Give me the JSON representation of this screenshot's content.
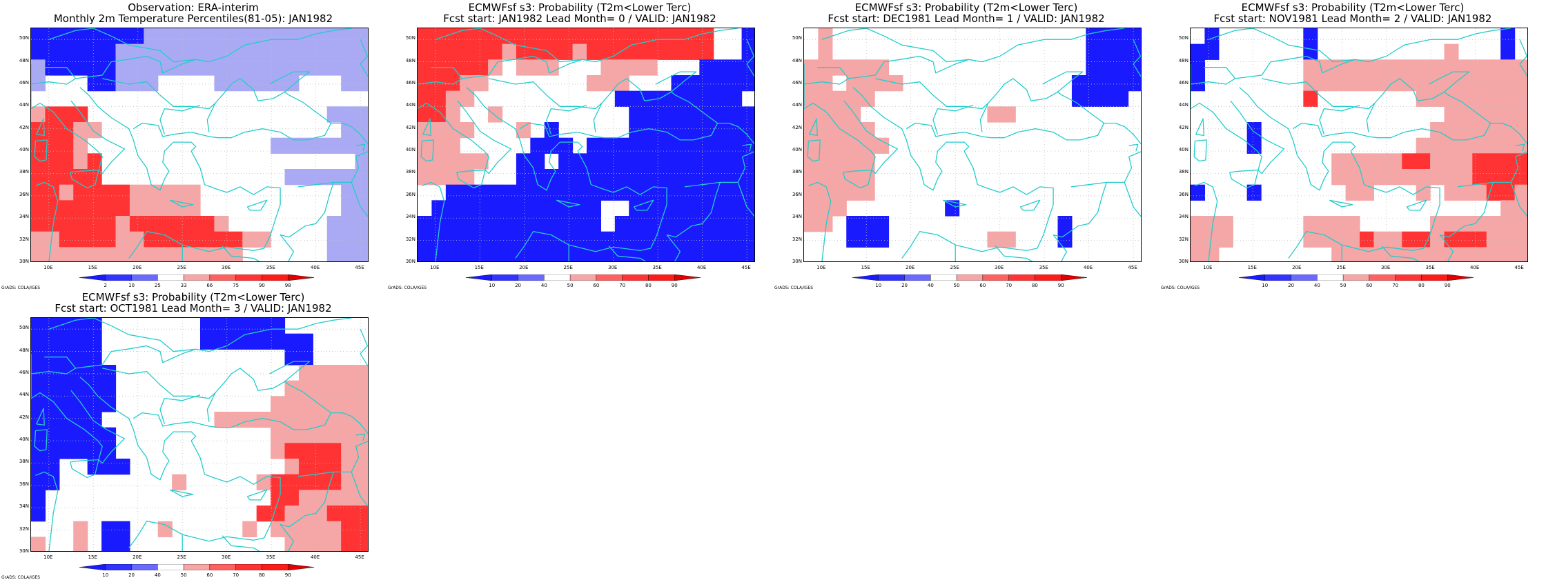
{
  "colors": {
    "blue": [
      "#1a1aff",
      "#3333ff",
      "#6a6aff",
      "#aaaaf4"
    ],
    "red": [
      "#ff1a1a",
      "#ff3333",
      "#ff6060",
      "#f5a6a6"
    ],
    "coast": "#22cccc",
    "grid": "#bfbfbf",
    "white": "#ffffff"
  },
  "map": {
    "lat_labels": [
      "50N",
      "48N",
      "46N",
      "44N",
      "42N",
      "40N",
      "38N",
      "36N",
      "34N",
      "32N",
      "30N"
    ],
    "lon_labels": [
      "10E",
      "15E",
      "20E",
      "25E",
      "30E",
      "35E",
      "40E",
      "45E"
    ],
    "lon_range": [
      8,
      46
    ],
    "lat_range": [
      30,
      51
    ]
  },
  "panels": [
    {
      "title_line1": "Observation: ERA-interim",
      "title_line2": "Monthly 2m Temperature Percentiles(81-05): JAN1982",
      "colorbar_labels": [
        "2",
        "10",
        "25",
        "33",
        "66",
        "75",
        "90",
        "98"
      ],
      "credit": "GrADS: COLA/IGES",
      "grid": [
        "BBBBBBBBbbbbbbbbbbbbbbbb",
        "BBBBBBbbbbbbbbbbbbbbbbbb",
        "bBBBBBbbbbbbbbbbbbbbbbbb",
        "b...BBbbb....bbbbbb...bb",
        "........................",
        "rRRR.................bbb",
        "RRRrr.................bb",
        "RRRr.............bbbbbbb",
        "RRRrR..................b",
        "RRRRR.............bbbbbb",
        "RRrRRRRrrrrr..........bb",
        "RRRRRRRrrrrr..........bb",
        "RRRRRRrRRRRRRr.......bbb",
        "rrRRRRrrRRRRRRRrr....bbb",
        "rrrrrrrrrrrrrrr......bbb"
      ]
    },
    {
      "title_line1": "ECMWFsf s3: Probability (T2m<Lower Terc)",
      "title_line2": "Fcst start: JAN1982  Lead Month= 0 / VALID: JAN1982",
      "colorbar_labels": [
        "10",
        "20",
        "40",
        "50",
        "60",
        "70",
        "80",
        "90"
      ],
      "credit": "GrADS: COLA/IGES",
      "grid": [
        "RRRRRRRRRRRRRRRRRRRRR..B",
        "RRRRRRrRRRRrRRRRRRRRR..B",
        "RRRRRr.rrr...rrrr...BBBB",
        "RRRrr.......rrr...BBBBBB",
        "RRrr..........BBBBBBBBB.",
        "RRr..r.........BBBBBBBBB",
        "rrrr...r.B.....BBBBBBBBB",
        "rrr.....BBB.BBBBBBBBBBBB",
        "rrrrr..BB.BBBBBBBBBBBBBB",
        "rrrr...BBBBBBBBBBBBBBBBB",
        "..BBBBBBBBBBBBBBBBBBBBBB",
        ".BBBBBBBBBBBB..BBBBBBBBB",
        "BBBBBBBBBBBBB.BBBBBBBBBB",
        "BBBBBBBBBBBBBBBBBBBBBBBB",
        "BBBBBBBBBBBBBBBBBBBBBBBB"
      ]
    },
    {
      "title_line1": "ECMWFsf s3: Probability (T2m<Lower Terc)",
      "title_line2": "Fcst start: DEC1981  Lead Month= 1 / VALID: JAN1982",
      "colorbar_labels": [
        "10",
        "20",
        "40",
        "50",
        "60",
        "70",
        "80",
        "90"
      ],
      "credit": "GrADS: COLA/IGES",
      "grid": [
        ".r..................BBBB",
        ".r..................BBBB",
        "rrrrrr..............BBBB",
        "rr.rrrr............BBBBB",
        "rrrrr..............BBBB.",
        "rrrr.........rr.........",
        "rrrrr...................",
        "rrrrrr..................",
        "rrrrr...................",
        "rrrrr...................",
        "rrrrr...................",
        "rrr.......B.............",
        "rr.BBB............B.....",
        "...BBB.......rr...B.....",
        "........................"
      ]
    },
    {
      "title_line1": "ECMWFsf s3: Probability (T2m<Lower Terc)",
      "title_line2": "Fcst start: NOV1981  Lead Month= 2 / VALID: JAN1982",
      "colorbar_labels": [
        "10",
        "20",
        "40",
        "50",
        "60",
        "70",
        "80",
        "90"
      ],
      "credit": "GrADS: COLA/IGES",
      "grid": [
        ".B......B.............B.",
        "BB......B.........r...B.",
        "B.......rrrrrrrrrrrrrrrr",
        "B.......rrrrrrrrrrrrrrrr",
        "........R.......rrrrrrrr",
        "..................rrrrrr",
        "....B............rrrrrrr",
        "....B...........rrrrrrrr",
        "..........rrrrrRRrrrRRRR",
        "..........rrrrrrrrrrRRRR",
        "B...B......rr...r.rrrRRr",
        "......................rr",
        "rrr.....rrrr.....rrrrrrr",
        "rrr.....rrrrRrrRRrRRRrrr",
        "rr........rrrrrrrrrrrrrr"
      ]
    },
    {
      "title_line1": "ECMWFsf s3: Probability (T2m<Lower Terc)",
      "title_line2": "Fcst start: OCT1981  Lead Month= 3 / VALID: JAN1982",
      "colorbar_labels": [
        "10",
        "20",
        "40",
        "50",
        "60",
        "70",
        "80",
        "90"
      ],
      "credit": "GrADS: COLA/IGES",
      "grid": [
        "BBBBB.......BBBBBB......",
        "BBBBB.......BBBBBBBB....",
        "BBBBB.............BB....",
        "BBBBBB.............rrrrr",
        "BBBBBB............rrrrrr",
        "BBBBBB...........rrrrrrr",
        "BBBBB........rrrrrrrrrrr",
        "BBBBBB...........rrrrrrr",
        "BBBBBB...........rRRRRrr",
        "BB..BBB...........rRRRrr",
        "BB........r.....rRRRRRrr",
        "B................RRrrrrr",
        "B...............RRrrrRRR",
        "...r.BB..r.....r.rrrrrRR",
        "r..r.BB...........rrrrRR"
      ]
    }
  ]
}
